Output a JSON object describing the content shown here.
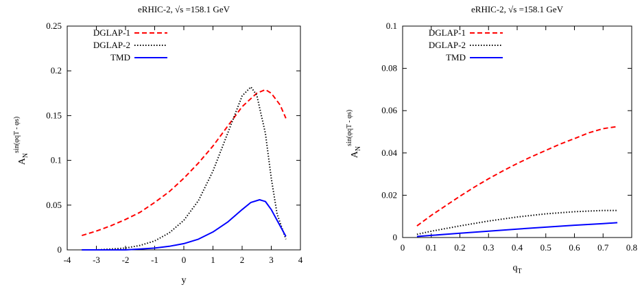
{
  "chart_data": [
    {
      "type": "line",
      "title": "eRHIC-2, √s =158.1 GeV",
      "xlabel": "y",
      "ylabel_main": "A",
      "ylabel_sub": "N",
      "ylabel_sup": "sin(φqT - φs)",
      "xlim": [
        -4,
        4
      ],
      "ylim": [
        0,
        0.25
      ],
      "xticks": [
        "-4",
        "-3",
        "-2",
        "-1",
        "0",
        "1",
        "2",
        "3",
        "4"
      ],
      "yticks": [
        "0",
        "0.05",
        "0.1",
        "0.15",
        "0.2",
        "0.25"
      ],
      "legend_position": "top-left",
      "series": [
        {
          "name": "DGLAP-1",
          "color": "#ff0000",
          "style": "dashed",
          "x": [
            -3.5,
            -3.0,
            -2.5,
            -2.0,
            -1.5,
            -1.0,
            -0.5,
            0.0,
            0.5,
            1.0,
            1.5,
            2.0,
            2.5,
            2.8,
            3.0,
            3.3,
            3.5
          ],
          "y": [
            0.016,
            0.021,
            0.027,
            0.034,
            0.042,
            0.053,
            0.065,
            0.08,
            0.097,
            0.116,
            0.138,
            0.16,
            0.175,
            0.179,
            0.175,
            0.162,
            0.147
          ]
        },
        {
          "name": "DGLAP-2",
          "color": "#000000",
          "style": "dotted",
          "x": [
            -3.5,
            -3.0,
            -2.5,
            -2.0,
            -1.5,
            -1.0,
            -0.5,
            0.0,
            0.5,
            1.0,
            1.5,
            2.0,
            2.3,
            2.5,
            2.8,
            3.0,
            3.2,
            3.5
          ],
          "y": [
            0.0,
            0.0,
            0.001,
            0.002,
            0.005,
            0.01,
            0.019,
            0.033,
            0.055,
            0.088,
            0.13,
            0.172,
            0.182,
            0.173,
            0.13,
            0.08,
            0.04,
            0.012
          ]
        },
        {
          "name": "TMD",
          "color": "#0000ff",
          "style": "solid",
          "x": [
            -3.5,
            -3.0,
            -2.5,
            -2.0,
            -1.5,
            -1.0,
            -0.5,
            0.0,
            0.5,
            1.0,
            1.5,
            2.0,
            2.3,
            2.6,
            2.8,
            3.0,
            3.2,
            3.5
          ],
          "y": [
            0.0,
            0.0,
            0.0,
            0.0,
            0.001,
            0.002,
            0.004,
            0.007,
            0.012,
            0.02,
            0.031,
            0.045,
            0.053,
            0.056,
            0.054,
            0.045,
            0.033,
            0.015
          ]
        }
      ]
    },
    {
      "type": "line",
      "title": "eRHIC-2, √s =158.1 GeV",
      "xlabel": "qT",
      "xlabel_main": "q",
      "xlabel_sub": "T",
      "ylabel_main": "A",
      "ylabel_sub": "N",
      "ylabel_sup": "sin(φqT - φs)",
      "xlim": [
        0,
        0.8
      ],
      "ylim": [
        0,
        0.1
      ],
      "xticks": [
        "0",
        "0.1",
        "0.2",
        "0.3",
        "0.4",
        "0.5",
        "0.6",
        "0.7",
        "0.8"
      ],
      "yticks": [
        "0",
        "0.02",
        "0.04",
        "0.06",
        "0.08",
        "0.1"
      ],
      "legend_position": "top-left",
      "series": [
        {
          "name": "DGLAP-1",
          "color": "#ff0000",
          "style": "dashed",
          "x": [
            0.05,
            0.1,
            0.15,
            0.2,
            0.25,
            0.3,
            0.35,
            0.4,
            0.45,
            0.5,
            0.55,
            0.6,
            0.65,
            0.7,
            0.75
          ],
          "y": [
            0.0055,
            0.0105,
            0.015,
            0.0195,
            0.0238,
            0.0278,
            0.0315,
            0.035,
            0.0382,
            0.0412,
            0.0442,
            0.0468,
            0.0495,
            0.0515,
            0.0525
          ]
        },
        {
          "name": "DGLAP-2",
          "color": "#000000",
          "style": "dotted",
          "x": [
            0.05,
            0.1,
            0.2,
            0.3,
            0.4,
            0.5,
            0.6,
            0.7,
            0.75
          ],
          "y": [
            0.0015,
            0.003,
            0.0055,
            0.0078,
            0.0097,
            0.0112,
            0.0122,
            0.0128,
            0.0128
          ]
        },
        {
          "name": "TMD",
          "color": "#0000ff",
          "style": "solid",
          "x": [
            0.05,
            0.1,
            0.2,
            0.3,
            0.4,
            0.5,
            0.6,
            0.7,
            0.75
          ],
          "y": [
            0.0005,
            0.001,
            0.002,
            0.003,
            0.004,
            0.0049,
            0.0058,
            0.0066,
            0.007
          ]
        }
      ]
    }
  ]
}
